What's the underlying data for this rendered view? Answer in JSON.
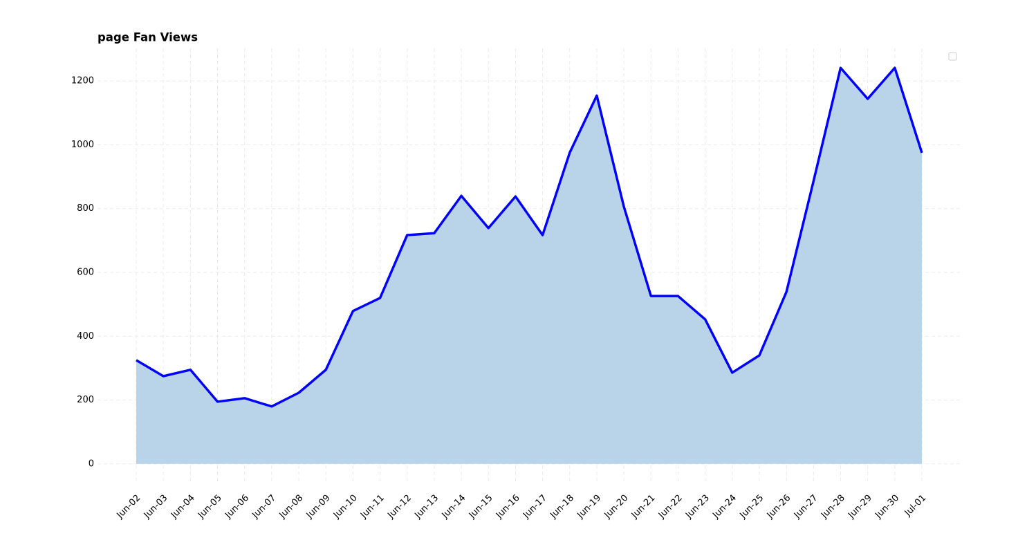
{
  "chart_data": {
    "type": "area",
    "title": "page Fan Views",
    "categories": [
      "Jun-02",
      "Jun-03",
      "Jun-04",
      "Jun-05",
      "Jun-06",
      "Jun-07",
      "Jun-08",
      "Jun-09",
      "Jun-10",
      "Jun-11",
      "Jun-12",
      "Jun-13",
      "Jun-14",
      "Jun-15",
      "Jun-16",
      "Jun-17",
      "Jun-18",
      "Jun-19",
      "Jun-20",
      "Jun-21",
      "Jun-22",
      "Jun-23",
      "Jun-24",
      "Jun-25",
      "Jun-26",
      "Jun-27",
      "Jun-28",
      "Jun-29",
      "Jun-30",
      "Jul-01"
    ],
    "values": [
      325,
      275,
      295,
      195,
      206,
      180,
      223,
      295,
      479,
      520,
      717,
      723,
      840,
      739,
      838,
      717,
      975,
      1154,
      806,
      526,
      526,
      453,
      286,
      340,
      539,
      886,
      1241,
      1144,
      1241,
      975
    ],
    "color": "#0000ff",
    "fill_color": "#b9d4e8",
    "ylim": [
      -63,
      1302
    ],
    "yticks": [
      0,
      200,
      400,
      600,
      800,
      1000,
      1200
    ],
    "grid": true
  }
}
